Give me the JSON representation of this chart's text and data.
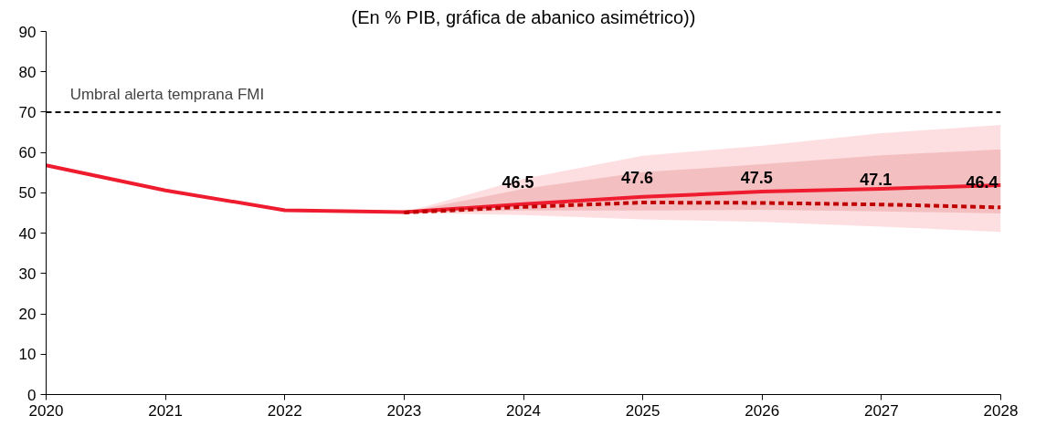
{
  "chart_data": {
    "type": "line",
    "title": "(En % PIB, gráfica de abanico asimétrico))",
    "xlim": [
      2020,
      2028
    ],
    "xticks": [
      2020,
      2021,
      2022,
      2023,
      2024,
      2025,
      2026,
      2027,
      2028
    ],
    "ylim": [
      0,
      90
    ],
    "yticks": [
      0,
      10,
      20,
      30,
      40,
      50,
      60,
      70,
      80,
      90
    ],
    "grid": false,
    "ref_lines": [
      {
        "axis": "y",
        "value": 70,
        "label": "Umbral alerta temprana FMI",
        "color": "#000000",
        "line_style": "dashed"
      }
    ],
    "series": [
      {
        "color": "#ee1c2e",
        "line_style": "solid",
        "x": [
          2020,
          2021,
          2022,
          2023,
          2024,
          2025,
          2026,
          2027,
          2028
        ],
        "values": [
          56.8,
          50.6,
          45.7,
          45.2,
          47.2,
          49.0,
          50.3,
          51.0,
          51.9
        ],
        "lower": [
          null,
          null,
          null,
          45.1,
          44.5,
          43.4,
          42.8,
          41.6,
          40.3
        ],
        "upper": [
          null,
          null,
          null,
          45.1,
          53.5,
          59.2,
          61.7,
          64.8,
          66.8
        ]
      },
      {
        "color": "#c00000",
        "line_style": "dashed",
        "x": [
          2023,
          2024,
          2025,
          2026,
          2027,
          2028
        ],
        "values": [
          45.1,
          46.5,
          47.6,
          47.5,
          47.1,
          46.4
        ],
        "lower": [
          45.1,
          45.6,
          45.6,
          45.8,
          45.4,
          44.9
        ],
        "upper": [
          45.1,
          51.0,
          55.1,
          57.1,
          59.3,
          60.8
        ],
        "value_labels": [
          null,
          "46.5",
          "47.6",
          "47.5",
          "47.1",
          "46.4"
        ]
      }
    ]
  }
}
